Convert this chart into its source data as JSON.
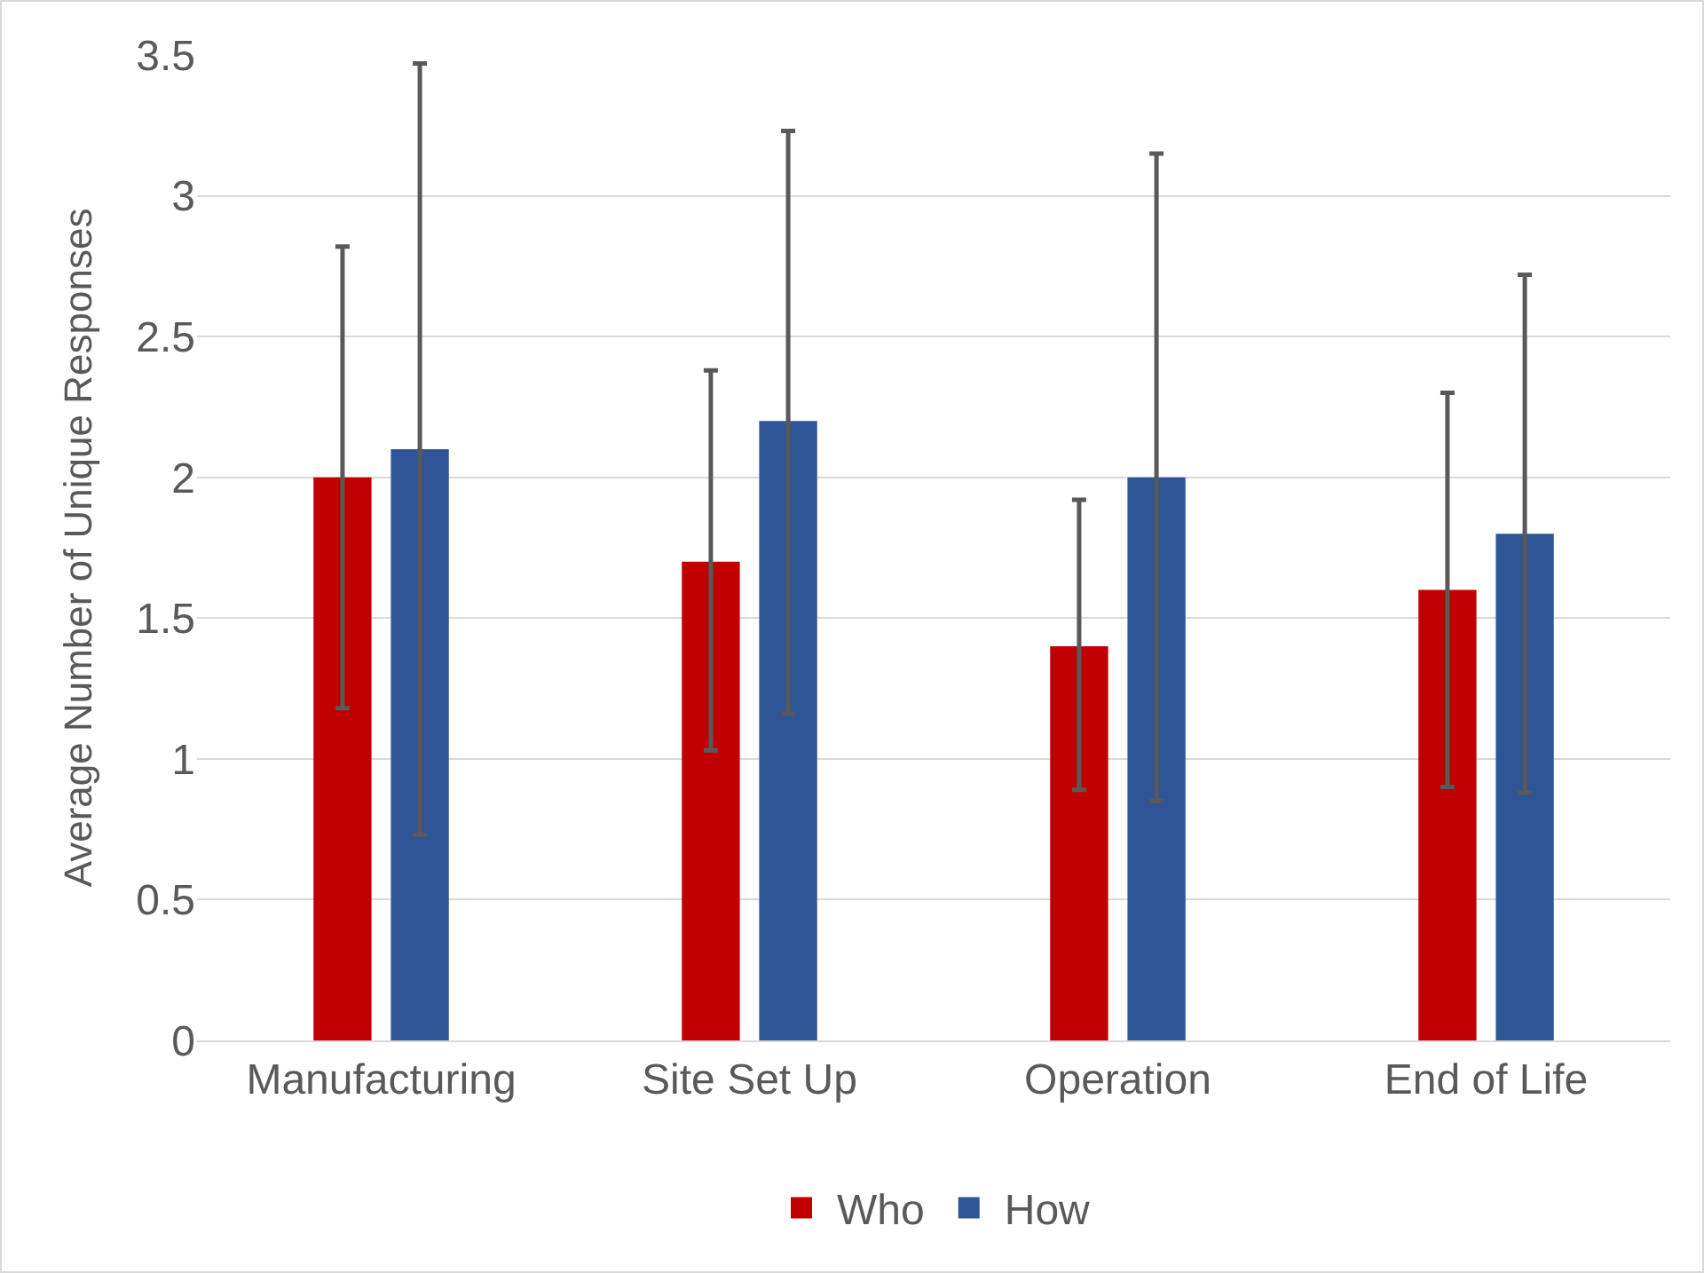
{
  "chart_data": {
    "type": "bar",
    "ylabel": "Average Number of Unique Responses",
    "categories": [
      "Manufacturing",
      "Site Set Up",
      "Operation",
      "End of Life"
    ],
    "series": [
      {
        "name": "Who",
        "color": "#c00000",
        "values": [
          2.0,
          1.7,
          1.4,
          1.6
        ],
        "errors": [
          [
            1.18,
            2.82
          ],
          [
            1.03,
            2.38
          ],
          [
            0.89,
            1.92
          ],
          [
            0.9,
            2.3
          ]
        ]
      },
      {
        "name": "How",
        "color": "#2f5597",
        "values": [
          2.1,
          2.2,
          2.0,
          1.8
        ],
        "errors": [
          [
            0.73,
            3.47
          ],
          [
            1.16,
            3.23
          ],
          [
            0.85,
            3.15
          ],
          [
            0.88,
            2.72
          ]
        ]
      }
    ],
    "ylim": [
      0,
      3.5
    ],
    "yticks": [
      0,
      0.5,
      1,
      1.5,
      2,
      2.5,
      3,
      3.5
    ],
    "grid": "y",
    "legend": "bottom"
  }
}
